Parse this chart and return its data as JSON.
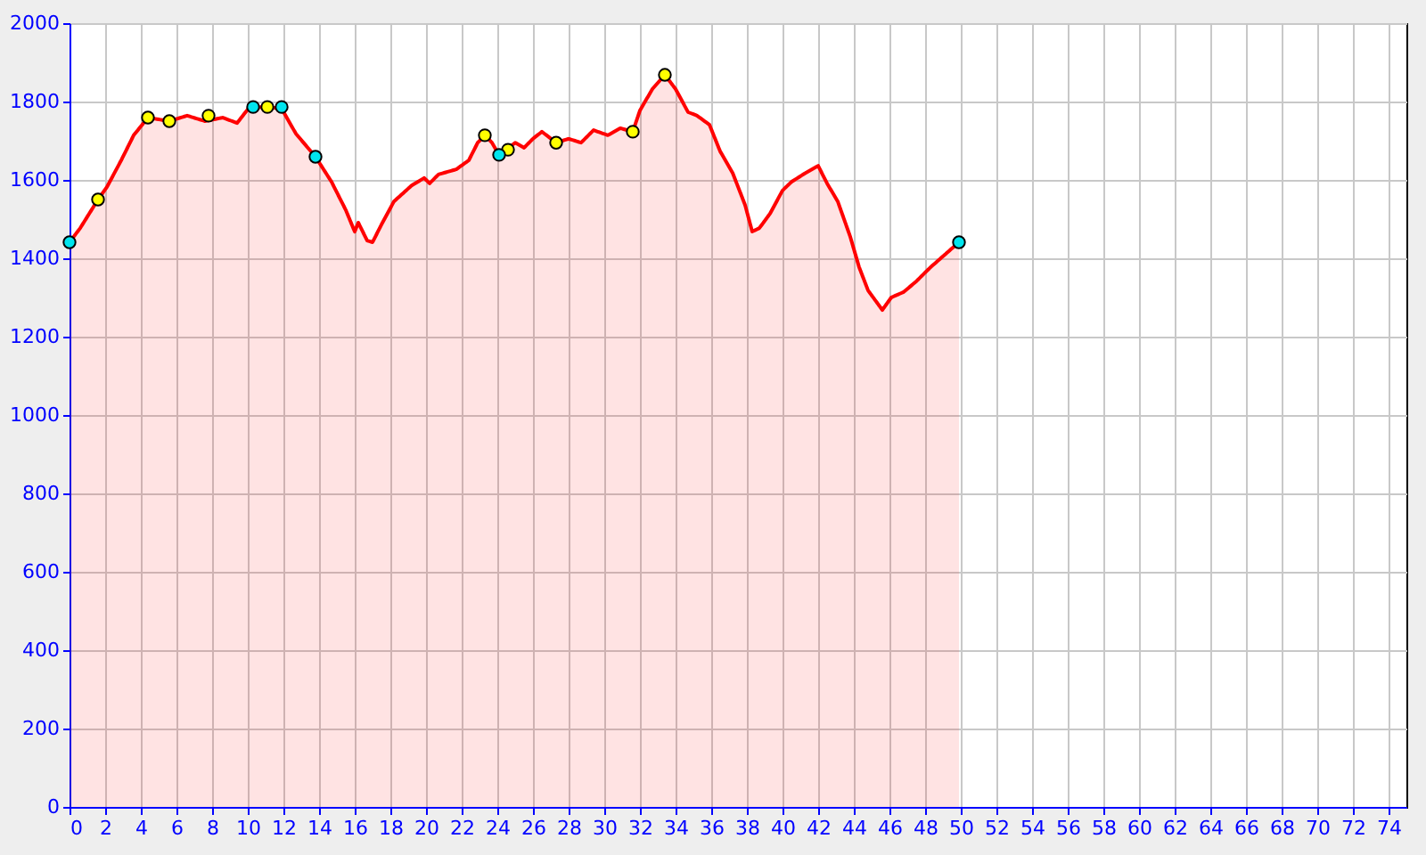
{
  "chart_data": {
    "type": "area",
    "xlim": [
      0,
      75
    ],
    "ylim": [
      0,
      2000
    ],
    "xticks": [
      0,
      2,
      4,
      6,
      8,
      10,
      12,
      14,
      16,
      18,
      20,
      22,
      24,
      26,
      28,
      30,
      32,
      34,
      36,
      38,
      40,
      42,
      44,
      46,
      48,
      50,
      52,
      54,
      56,
      58,
      60,
      62,
      64,
      66,
      68,
      70,
      72,
      74
    ],
    "yticks": [
      0,
      200,
      400,
      600,
      800,
      1000,
      1200,
      1400,
      1600,
      1800,
      2000
    ],
    "grid": true,
    "series": [
      {
        "color": "#ff0000",
        "marker": "none",
        "x": [
          0,
          0.6,
          1.6,
          2.1,
          2.9,
          3.6,
          4.4,
          5.6,
          6.6,
          7.6,
          8.6,
          9.4,
          10.1,
          11.1,
          11.9,
          12.7,
          13.8,
          14.7,
          15.5,
          16.0,
          16.2,
          16.7,
          17.0,
          17.5,
          18.2,
          19.2,
          19.9,
          20.2,
          20.7,
          21.7,
          22.4,
          22.9,
          23.3,
          23.7,
          24.1,
          24.5,
          25.0,
          25.5,
          26.0,
          26.5,
          27.3,
          28.0,
          28.7,
          29.4,
          30.2,
          30.9,
          31.6,
          32.0,
          32.7,
          33.4,
          34.0,
          34.7,
          35.2,
          35.9,
          36.5,
          37.2,
          37.9,
          38.3,
          38.7,
          39.3,
          40.0,
          40.5,
          41.3,
          42.0,
          42.5,
          43.1,
          43.8,
          44.3,
          44.8,
          45.6,
          46.1,
          46.8,
          47.5,
          48.3,
          49.1,
          49.9
        ],
        "values": [
          1441,
          1477,
          1550,
          1582,
          1650,
          1714,
          1759,
          1750,
          1764,
          1750,
          1759,
          1745,
          1786,
          1786,
          1782,
          1718,
          1659,
          1595,
          1523,
          1468,
          1491,
          1445,
          1441,
          1486,
          1545,
          1586,
          1605,
          1591,
          1614,
          1627,
          1650,
          1695,
          1714,
          1695,
          1664,
          1677,
          1695,
          1682,
          1705,
          1723,
          1695,
          1705,
          1695,
          1727,
          1714,
          1732,
          1723,
          1777,
          1832,
          1868,
          1832,
          1773,
          1764,
          1741,
          1673,
          1618,
          1536,
          1468,
          1477,
          1514,
          1573,
          1595,
          1618,
          1636,
          1591,
          1545,
          1455,
          1377,
          1318,
          1268,
          1300,
          1314,
          1341,
          1377,
          1409,
          1441
        ]
      },
      {
        "type": "scatter",
        "marker": "circle",
        "x": [
          1.6,
          4.4,
          5.6,
          7.8,
          11.1,
          23.3,
          24.6,
          27.3,
          31.6,
          33.4
        ],
        "values": [
          1550,
          1759,
          1750,
          1764,
          1786,
          1714,
          1677,
          1695,
          1723,
          1868
        ],
        "color": "#ffff00"
      },
      {
        "type": "scatter",
        "marker": "circle",
        "x": [
          0,
          10.3,
          11.9,
          13.8,
          24.1,
          49.9
        ],
        "values": [
          1441,
          1786,
          1786,
          1659,
          1664,
          1441
        ],
        "color": "#00e5ee"
      }
    ]
  }
}
